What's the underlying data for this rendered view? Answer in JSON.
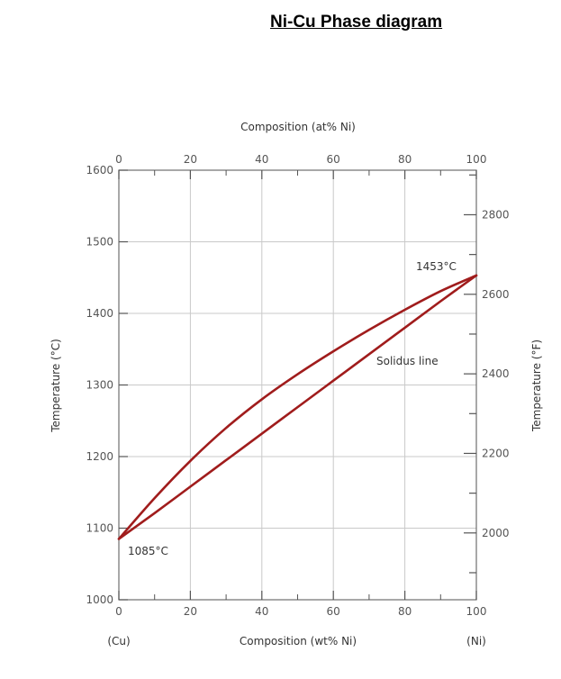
{
  "page": {
    "title": "Ni-Cu Phase diagram"
  },
  "chart_data": {
    "type": "line",
    "title": "Ni-Cu Phase diagram",
    "xlabel_bottom": "Composition (wt% Ni)",
    "xlabel_top": "Composition (at% Ni)",
    "ylabel_left": "Temperature (°C)",
    "ylabel_right": "Temperature (°F)",
    "xlim": [
      0,
      100
    ],
    "ylim": [
      1000,
      1600
    ],
    "x_ticks": [
      0,
      20,
      40,
      60,
      80,
      100
    ],
    "x_tick_labels": [
      "0",
      "20",
      "40",
      "60",
      "80",
      "100"
    ],
    "top_ticks_at_pct": [
      0,
      20,
      40,
      60,
      80,
      100
    ],
    "top_tick_labels": [
      "0",
      "20",
      "40",
      "60",
      "80",
      "100"
    ],
    "y_ticks": [
      1000,
      1100,
      1200,
      1300,
      1400,
      1500,
      1600
    ],
    "y_tick_labels": [
      "1000",
      "1100",
      "1200",
      "1300",
      "1400",
      "1500",
      "1600"
    ],
    "right_ticks_f": [
      2000,
      2200,
      2400,
      2600,
      2800
    ],
    "right_tick_labels": [
      "2000",
      "2200",
      "2400",
      "2600",
      "2800"
    ],
    "bottom_end_labels": {
      "left": "(Cu)",
      "right": "(Ni)"
    },
    "grid": true,
    "line_color": "#a01c1c",
    "series": [
      {
        "role": "liquidus",
        "x": [
          0,
          10,
          20,
          30,
          40,
          50,
          60,
          70,
          80,
          90,
          100
        ],
        "y": [
          1085,
          1142,
          1194,
          1240,
          1280,
          1315,
          1347,
          1377,
          1405,
          1431,
          1453
        ]
      },
      {
        "name": "Solidus line",
        "x": [
          0,
          10,
          20,
          30,
          40,
          50,
          60,
          70,
          80,
          90,
          100
        ],
        "y": [
          1085,
          1121,
          1158,
          1195,
          1232,
          1269,
          1306,
          1343,
          1380,
          1417,
          1453
        ]
      }
    ],
    "annotations": [
      {
        "text": "1453°C",
        "x": 100,
        "y": 1453
      },
      {
        "text": "1085°C",
        "x": 0,
        "y": 1085
      },
      {
        "text": "Solidus line",
        "x": 80,
        "y": 1318
      }
    ]
  }
}
